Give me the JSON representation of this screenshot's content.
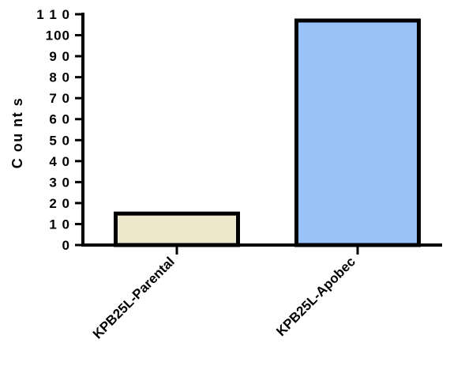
{
  "chart_data": {
    "type": "bar",
    "ylabel": "C ou nt s",
    "categories": [
      "KPB25L-Parental",
      "KPB25L-Apobec"
    ],
    "values": [
      15,
      107
    ],
    "ylim": [
      0,
      110
    ],
    "yticks": [
      0,
      10,
      20,
      30,
      40,
      50,
      60,
      70,
      80,
      90,
      100,
      110
    ],
    "ytick_labels": [
      "0",
      "1 0",
      "2 0",
      "3 0",
      "4 0",
      "5 0",
      "6 0",
      "7 0",
      "8 0",
      "9 0",
      "100",
      "1 1 0"
    ],
    "bar_colors": [
      "#ede7cc",
      "#99c2f8"
    ],
    "outline_color": "#000000",
    "grid": false,
    "legend": "none"
  }
}
